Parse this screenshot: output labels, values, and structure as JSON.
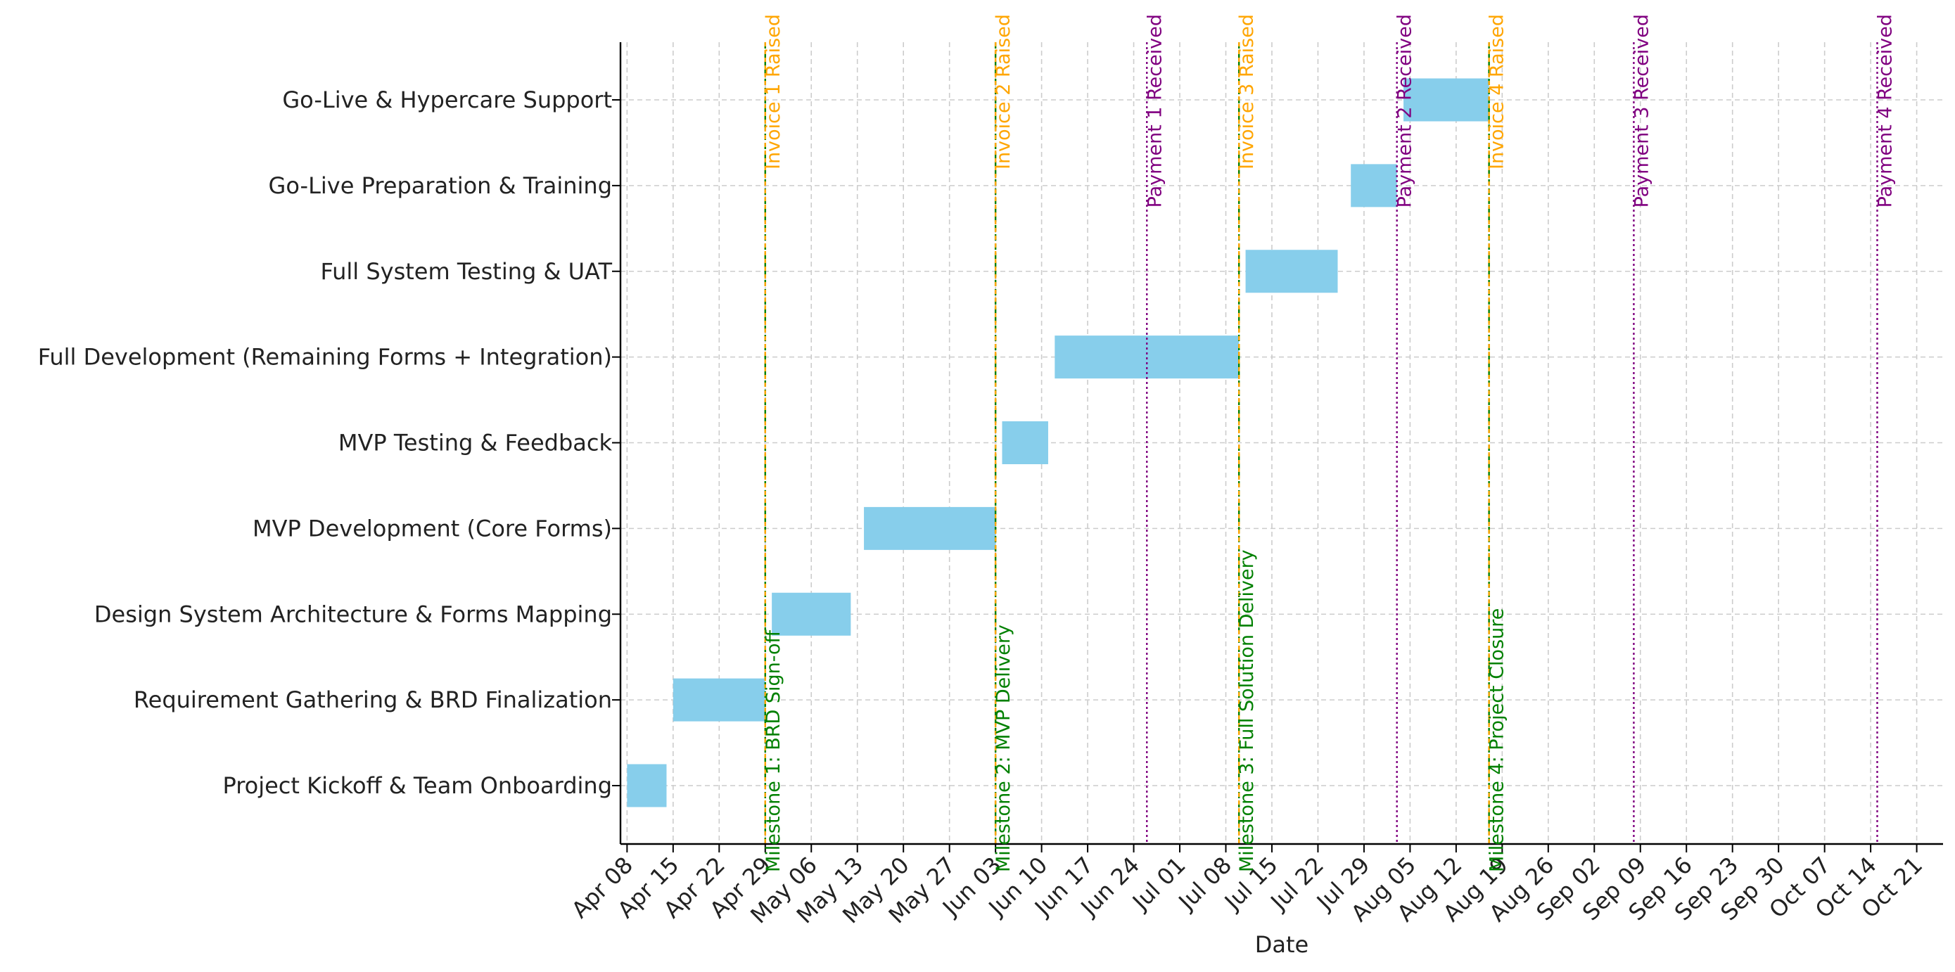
{
  "chart_data": {
    "type": "gantt",
    "xlabel": "Date",
    "x_range": [
      "2024-04-07",
      "2024-10-25"
    ],
    "x_ticks": [
      {
        "date": "2024-04-08",
        "label": "Apr 08"
      },
      {
        "date": "2024-04-15",
        "label": "Apr 15"
      },
      {
        "date": "2024-04-22",
        "label": "Apr 22"
      },
      {
        "date": "2024-04-29",
        "label": "Apr 29"
      },
      {
        "date": "2024-05-06",
        "label": "May 06"
      },
      {
        "date": "2024-05-13",
        "label": "May 13"
      },
      {
        "date": "2024-05-20",
        "label": "May 20"
      },
      {
        "date": "2024-05-27",
        "label": "May 27"
      },
      {
        "date": "2024-06-03",
        "label": "Jun 03"
      },
      {
        "date": "2024-06-10",
        "label": "Jun 10"
      },
      {
        "date": "2024-06-17",
        "label": "Jun 17"
      },
      {
        "date": "2024-06-24",
        "label": "Jun 24"
      },
      {
        "date": "2024-07-01",
        "label": "Jul 01"
      },
      {
        "date": "2024-07-08",
        "label": "Jul 08"
      },
      {
        "date": "2024-07-15",
        "label": "Jul 15"
      },
      {
        "date": "2024-07-22",
        "label": "Jul 22"
      },
      {
        "date": "2024-07-29",
        "label": "Jul 29"
      },
      {
        "date": "2024-08-05",
        "label": "Aug 05"
      },
      {
        "date": "2024-08-12",
        "label": "Aug 12"
      },
      {
        "date": "2024-08-19",
        "label": "Aug 19"
      },
      {
        "date": "2024-08-26",
        "label": "Aug 26"
      },
      {
        "date": "2024-09-02",
        "label": "Sep 02"
      },
      {
        "date": "2024-09-09",
        "label": "Sep 09"
      },
      {
        "date": "2024-09-16",
        "label": "Sep 16"
      },
      {
        "date": "2024-09-23",
        "label": "Sep 23"
      },
      {
        "date": "2024-09-30",
        "label": "Sep 30"
      },
      {
        "date": "2024-10-07",
        "label": "Oct 07"
      },
      {
        "date": "2024-10-14",
        "label": "Oct 14"
      },
      {
        "date": "2024-10-21",
        "label": "Oct 21"
      }
    ],
    "tasks": [
      {
        "name": "Project Kickoff & Team Onboarding",
        "start": "2024-04-08",
        "end": "2024-04-14"
      },
      {
        "name": "Requirement Gathering & BRD Finalization",
        "start": "2024-04-15",
        "end": "2024-04-29"
      },
      {
        "name": "Design System Architecture & Forms Mapping",
        "start": "2024-04-30",
        "end": "2024-05-12"
      },
      {
        "name": "MVP Development (Core Forms)",
        "start": "2024-05-14",
        "end": "2024-06-03"
      },
      {
        "name": "MVP Testing & Feedback",
        "start": "2024-06-04",
        "end": "2024-06-11"
      },
      {
        "name": "Full Development (Remaining Forms + Integration)",
        "start": "2024-06-12",
        "end": "2024-07-10"
      },
      {
        "name": "Full System Testing & UAT",
        "start": "2024-07-11",
        "end": "2024-07-25"
      },
      {
        "name": "Go-Live Preparation & Training",
        "start": "2024-07-27",
        "end": "2024-08-03"
      },
      {
        "name": "Go-Live & Hypercare Support",
        "start": "2024-08-04",
        "end": "2024-08-17"
      }
    ],
    "milestones": [
      {
        "label": "Milestone 1: BRD Sign-off",
        "date": "2024-04-29"
      },
      {
        "label": "Milestone 2: MVP Delivery",
        "date": "2024-06-03"
      },
      {
        "label": "Milestone 3: Full Solution Delivery",
        "date": "2024-07-10"
      },
      {
        "label": "Milestone 4: Project Closure",
        "date": "2024-08-17"
      }
    ],
    "invoices": [
      {
        "label": "Invoice 1 Raised",
        "date": "2024-04-29"
      },
      {
        "label": "Invoice 2 Raised",
        "date": "2024-06-03"
      },
      {
        "label": "Invoice 3 Raised",
        "date": "2024-07-10"
      },
      {
        "label": "Invoice 4 Raised",
        "date": "2024-08-17"
      }
    ],
    "payments": [
      {
        "label": "Payment 1 Received",
        "date": "2024-06-26"
      },
      {
        "label": "Payment 2 Received",
        "date": "2024-08-03"
      },
      {
        "label": "Payment 3 Received",
        "date": "2024-09-08"
      },
      {
        "label": "Payment 4 Received",
        "date": "2024-10-15"
      }
    ],
    "grid": true,
    "colors": {
      "bar": "#87ceeb",
      "milestone": "#008000",
      "invoice": "#ffa500",
      "payment": "#800080",
      "grid": "#cccccc"
    }
  }
}
